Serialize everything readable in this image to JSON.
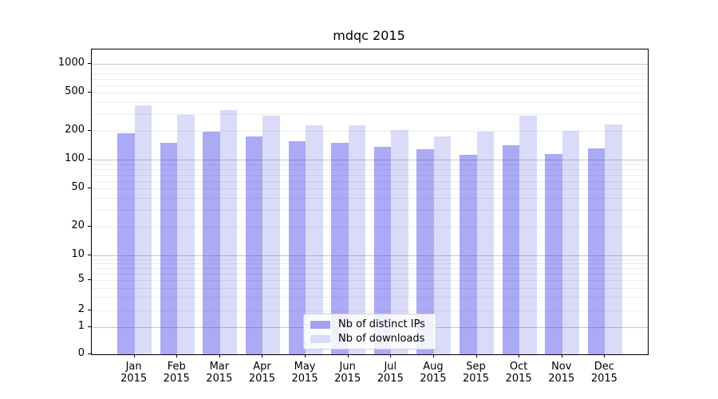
{
  "figure": {
    "background_color": "#ffffff",
    "title": "mdqc 2015"
  },
  "chart_data": {
    "type": "bar",
    "title": "mdqc 2015",
    "categories": [
      "Jan",
      "Feb",
      "Mar",
      "Apr",
      "May",
      "Jun",
      "Jul",
      "Aug",
      "Sep",
      "Oct",
      "Nov",
      "Dec"
    ],
    "x_tick_year_line": "2015",
    "series": [
      {
        "name": "Nb of distinct IPs",
        "legend_color": "#a2a2f0",
        "bar_color_rgba": "rgba(66,66,233,0.45)",
        "values": [
          190,
          150,
          198,
          176,
          155,
          150,
          137,
          128,
          112,
          142,
          115,
          132
        ]
      },
      {
        "name": "Nb of downloads",
        "legend_color": "#d9d9f8",
        "bar_color_rgba": "rgba(70,70,225,0.20)",
        "values": [
          372,
          292,
          330,
          291,
          230,
          228,
          205,
          176,
          198,
          291,
          202,
          235
        ]
      }
    ],
    "xlabel": "",
    "ylabel": "",
    "y_axis": {
      "scale": "symlog",
      "tick_labels": [
        1000,
        500,
        200,
        100,
        50,
        20,
        10,
        5,
        2,
        1,
        0
      ],
      "major_gridline_values": [
        1,
        10,
        100,
        1000
      ],
      "ylim": [
        0,
        1424
      ]
    },
    "grid": true,
    "legend": {
      "position": "lower center",
      "entries": [
        "Nb of distinct IPs",
        "Nb of downloads"
      ]
    }
  }
}
